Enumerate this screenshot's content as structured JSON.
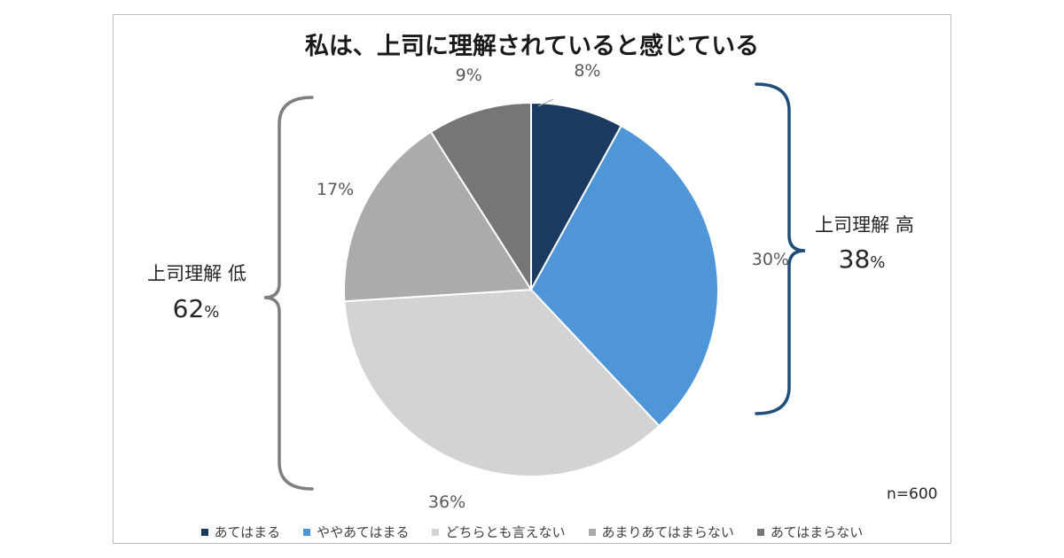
{
  "title": "私は、上司に理解されていると感じている",
  "chart_data": {
    "type": "pie",
    "title": "私は、上司に理解されていると感じている",
    "categories": [
      "あてはまる",
      "ややあてはまる",
      "どちらとも言えない",
      "あまりあてはまらない",
      "あてはまらない"
    ],
    "values": [
      8,
      30,
      36,
      17,
      9
    ],
    "value_labels": [
      "8%",
      "30%",
      "36%",
      "17%",
      "9%"
    ],
    "colors": [
      "#1a3a5f",
      "#4f96d9",
      "#d3d3d3",
      "#ababab",
      "#767676"
    ],
    "legend_position": "bottom",
    "start": "12 o'clock, clockwise"
  },
  "groups": {
    "high": {
      "label": "上司理解 高",
      "value": "38",
      "unit": "%",
      "bracket_color": "#1f4e79"
    },
    "low": {
      "label": "上司理解 低",
      "value": "62",
      "unit": "%",
      "bracket_color": "#7f7f7f"
    }
  },
  "sample_size": "n=600"
}
